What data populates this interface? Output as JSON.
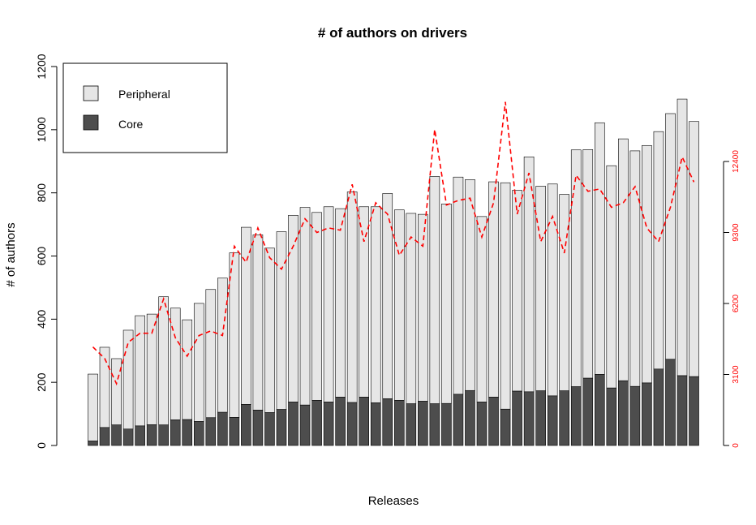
{
  "chart_data": {
    "type": "bar",
    "title": "# of authors on drivers",
    "xlabel": "Releases",
    "ylabel": "# of authors",
    "ylim": [
      0,
      1200
    ],
    "yticks": [
      "0",
      "200",
      "400",
      "600",
      "800",
      "1000",
      "1200"
    ],
    "secondary_axis": {
      "ticks": [
        "0",
        "3100",
        "6200",
        "9300",
        "12400"
      ],
      "ylim": [
        0,
        12400
      ],
      "color": "#ff0000",
      "series": {
        "style": "dashed-line",
        "values": [
          4300,
          3800,
          2700,
          4500,
          4900,
          4900,
          6400,
          4700,
          3900,
          4800,
          5000,
          4800,
          8700,
          8000,
          9500,
          8200,
          7700,
          8700,
          9900,
          9300,
          9500,
          9400,
          11400,
          8900,
          10600,
          10100,
          8300,
          9100,
          8700,
          13800,
          10500,
          10700,
          10800,
          9100,
          10600,
          15000,
          10100,
          11900,
          8900,
          10000,
          8400,
          11800,
          11100,
          11200,
          10400,
          10600,
          11300,
          9500,
          8900,
          10400,
          12600,
          11500
        ]
      }
    },
    "stacked": true,
    "series": [
      {
        "name": "Core",
        "color": "#4d4d4d",
        "values": [
          14,
          57,
          65,
          52,
          62,
          66,
          65,
          81,
          82,
          76,
          88,
          105,
          89,
          130,
          112,
          104,
          114,
          138,
          128,
          143,
          138,
          153,
          136,
          153,
          135,
          148,
          143,
          132,
          140,
          132,
          133,
          162,
          174,
          138,
          153,
          115,
          172,
          170,
          173,
          157,
          173,
          186,
          213,
          225,
          182,
          205,
          187,
          198,
          242,
          273,
          221,
          218
        ]
      },
      {
        "name": "Peripheral",
        "color": "#e6e6e6",
        "values": [
          212,
          254,
          210,
          313,
          349,
          350,
          406,
          354,
          316,
          374,
          406,
          425,
          521,
          561,
          555,
          521,
          563,
          591,
          626,
          595,
          618,
          597,
          667,
          603,
          621,
          650,
          603,
          603,
          592,
          720,
          632,
          688,
          668,
          587,
          682,
          717,
          636,
          744,
          648,
          671,
          622,
          750,
          724,
          797,
          704,
          766,
          746,
          752,
          752,
          778,
          876,
          808
        ]
      }
    ],
    "legend": {
      "placement": "top-left",
      "entries": [
        "Peripheral",
        "Core"
      ]
    },
    "grid": false
  }
}
